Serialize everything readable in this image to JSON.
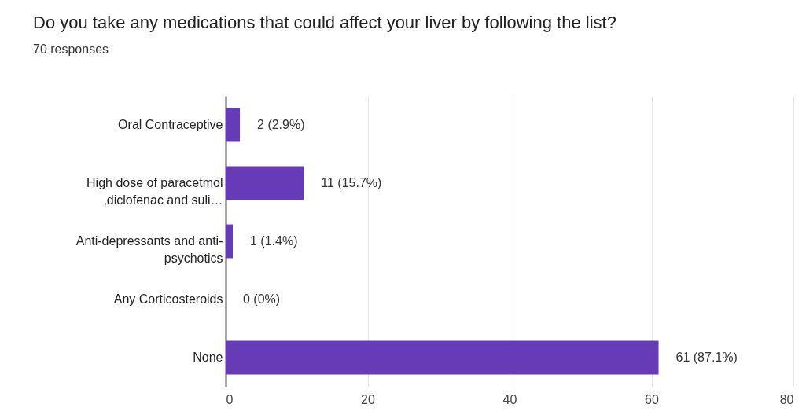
{
  "chart_data": {
    "type": "bar",
    "orientation": "horizontal",
    "title": "Do you take any medications that could affect your liver by following the list?",
    "subtitle": "70 responses",
    "categories": [
      "Oral Contraceptive",
      "High dose of paracetmol ,diclofenac and suli…",
      "Anti-depressants and anti-psychotics",
      "Any Corticosteroids",
      "None"
    ],
    "values": [
      2,
      11,
      1,
      0,
      61
    ],
    "value_labels": [
      "2 (2.9%)",
      "11 (15.7%)",
      "1 (1.4%)",
      "0 (0%)",
      "61 (87.1%)"
    ],
    "color": "#673ab7",
    "xlim": [
      0,
      80
    ],
    "xticks": [
      0,
      20,
      40,
      60,
      80
    ],
    "grid": "x"
  }
}
